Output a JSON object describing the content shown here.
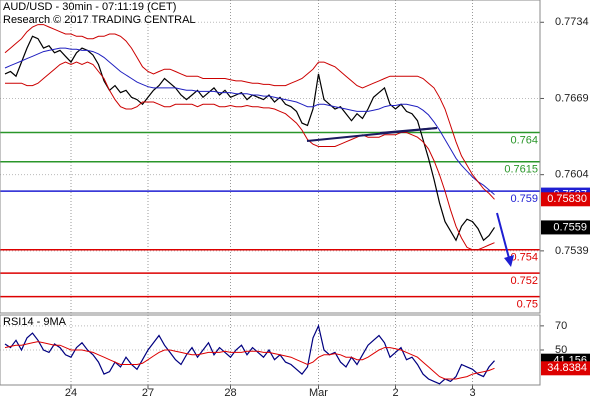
{
  "chart_data": [
    {
      "type": "line",
      "title": "AUD/USD - 30min - 07:11:19 (CET)",
      "subtitle": "Research © 2017 TRADING CENTRAL",
      "xlim": [
        0,
        89
      ],
      "ylim": [
        0.7486,
        0.7753
      ],
      "yticks": [
        0.7734,
        0.7669,
        0.7604,
        0.7539
      ],
      "series": [
        {
          "color": "#000000",
          "values": [
            0.769,
            0.7692,
            0.7688,
            0.77,
            0.7712,
            0.7722,
            0.772,
            0.7712,
            0.7714,
            0.7708,
            0.771,
            0.7705,
            0.77,
            0.7708,
            0.7712,
            0.771,
            0.7706,
            0.7698,
            0.7684,
            0.7676,
            0.768,
            0.7674,
            0.7676,
            0.767,
            0.7668,
            0.7664,
            0.767,
            0.7676,
            0.768,
            0.7686,
            0.7682,
            0.7678,
            0.7672,
            0.7668,
            0.7672,
            0.7676,
            0.767,
            0.7674,
            0.7678,
            0.7672,
            0.7676,
            0.767,
            0.7672,
            0.7674,
            0.7668,
            0.7672,
            0.767,
            0.7668,
            0.7672,
            0.7666,
            0.767,
            0.7664,
            0.7662,
            0.7658,
            0.7648,
            0.7646,
            0.766,
            0.769,
            0.7668,
            0.7664,
            0.766,
            0.7662,
            0.7656,
            0.765,
            0.7656,
            0.7652,
            0.766,
            0.767,
            0.7674,
            0.7678,
            0.7664,
            0.766,
            0.7664,
            0.7658,
            0.7656,
            0.765,
            0.7634,
            0.7618,
            0.76,
            0.758,
            0.7564,
            0.7556,
            0.7548,
            0.756,
            0.7566,
            0.7564,
            0.7558,
            0.7548,
            0.7552,
            0.7559
          ]
        },
        {
          "color": "#2020c0",
          "values": [
            0.7695,
            0.7697,
            0.7699,
            0.7701,
            0.7703,
            0.7705,
            0.7707,
            0.7709,
            0.771,
            0.7711,
            0.7712,
            0.7712,
            0.7711,
            0.7711,
            0.771,
            0.771,
            0.7709,
            0.7707,
            0.7704,
            0.77,
            0.7696,
            0.7692,
            0.7689,
            0.7686,
            0.7683,
            0.7681,
            0.7679,
            0.7678,
            0.7678,
            0.7678,
            0.7678,
            0.7678,
            0.7677,
            0.7676,
            0.7676,
            0.7675,
            0.7675,
            0.7675,
            0.7675,
            0.7674,
            0.7674,
            0.7674,
            0.7673,
            0.7673,
            0.7673,
            0.7672,
            0.7672,
            0.7671,
            0.7671,
            0.767,
            0.7669,
            0.7668,
            0.7667,
            0.7666,
            0.7664,
            0.7662,
            0.7662,
            0.7664,
            0.7664,
            0.7663,
            0.7662,
            0.7661,
            0.766,
            0.7659,
            0.7658,
            0.7658,
            0.7658,
            0.7659,
            0.766,
            0.7662,
            0.7663,
            0.7663,
            0.7664,
            0.7664,
            0.7663,
            0.7662,
            0.7659,
            0.7655,
            0.7649,
            0.7642,
            0.7634,
            0.7626,
            0.7618,
            0.7612,
            0.7607,
            0.7602,
            0.7598,
            0.7595,
            0.7591,
            0.7587
          ]
        },
        {
          "color": "#cc0000",
          "values": [
            0.7708,
            0.7712,
            0.7716,
            0.772,
            0.7726,
            0.773,
            0.7732,
            0.7732,
            0.773,
            0.7728,
            0.7726,
            0.7724,
            0.7724,
            0.7722,
            0.7722,
            0.772,
            0.772,
            0.7722,
            0.7722,
            0.7724,
            0.7724,
            0.7722,
            0.7718,
            0.7712,
            0.7704,
            0.7696,
            0.7692,
            0.769,
            0.7692,
            0.7694,
            0.7694,
            0.7692,
            0.769,
            0.7688,
            0.7688,
            0.7688,
            0.7686,
            0.7686,
            0.7686,
            0.7686,
            0.7686,
            0.7685,
            0.7684,
            0.7684,
            0.7683,
            0.7682,
            0.7682,
            0.7681,
            0.7681,
            0.768,
            0.768,
            0.768,
            0.7682,
            0.7684,
            0.7686,
            0.769,
            0.7694,
            0.77,
            0.77,
            0.7698,
            0.7696,
            0.7692,
            0.7688,
            0.7684,
            0.768,
            0.7678,
            0.768,
            0.7682,
            0.7684,
            0.7686,
            0.7688,
            0.7688,
            0.7688,
            0.7688,
            0.7688,
            0.7688,
            0.7686,
            0.7682,
            0.7678,
            0.767,
            0.766,
            0.7646,
            0.7632,
            0.762,
            0.7612,
            0.7604,
            0.7598,
            0.7592,
            0.7588,
            0.7583
          ]
        },
        {
          "color": "#cc0000",
          "values": [
            0.7682,
            0.7682,
            0.7682,
            0.7682,
            0.768,
            0.768,
            0.7682,
            0.7686,
            0.769,
            0.7694,
            0.7698,
            0.77,
            0.7698,
            0.77,
            0.7698,
            0.77,
            0.7698,
            0.7692,
            0.7686,
            0.7676,
            0.7668,
            0.7662,
            0.766,
            0.766,
            0.7662,
            0.7666,
            0.7666,
            0.7666,
            0.7664,
            0.7662,
            0.7662,
            0.7664,
            0.7664,
            0.7664,
            0.7664,
            0.7662,
            0.7664,
            0.7664,
            0.7664,
            0.7662,
            0.7662,
            0.7663,
            0.7662,
            0.7662,
            0.7663,
            0.7662,
            0.7662,
            0.7661,
            0.7661,
            0.766,
            0.7658,
            0.7656,
            0.7652,
            0.7648,
            0.7642,
            0.7634,
            0.763,
            0.7628,
            0.7628,
            0.7628,
            0.7628,
            0.763,
            0.7632,
            0.7634,
            0.7636,
            0.7638,
            0.7636,
            0.7636,
            0.7636,
            0.7638,
            0.7638,
            0.7638,
            0.764,
            0.764,
            0.7638,
            0.7636,
            0.7632,
            0.7626,
            0.7616,
            0.7604,
            0.759,
            0.7574,
            0.756,
            0.755,
            0.7542,
            0.754,
            0.754,
            0.7542,
            0.7544,
            0.7546
          ]
        }
      ],
      "levels": [
        {
          "value": 0.764,
          "color": "#2a962a"
        },
        {
          "value": 0.7615,
          "color": "#2a962a"
        },
        {
          "value": 0.759,
          "color": "#1e1ed2"
        },
        {
          "value": 0.754,
          "color": "#dd0000"
        },
        {
          "value": 0.752,
          "color": "#dd0000"
        },
        {
          "value": 0.75,
          "color": "#dd0000"
        }
      ],
      "markers": [
        {
          "value": 0.7587,
          "color": "#1e1ed2"
        },
        {
          "value": 0.7583,
          "label": "0.75830",
          "color": "#dd0000"
        },
        {
          "value": 0.7559,
          "color": "#000000"
        }
      ]
    },
    {
      "type": "line",
      "title": "RSI14 - 9MA",
      "xlim": [
        0,
        89
      ],
      "ylim": [
        21,
        79
      ],
      "yticks": [
        70,
        50
      ],
      "xticks": [
        {
          "value": 12,
          "label": "24"
        },
        {
          "value": 26,
          "label": "27"
        },
        {
          "value": 41,
          "label": "28"
        },
        {
          "value": 57,
          "label": "Mar"
        },
        {
          "value": 71,
          "label": "2"
        },
        {
          "value": 85,
          "label": "3"
        }
      ],
      "series": [
        {
          "color": "#000080",
          "values": [
            55,
            52,
            58,
            50,
            60,
            64,
            58,
            50,
            48,
            55,
            52,
            46,
            44,
            52,
            56,
            50,
            46,
            40,
            30,
            32,
            40,
            36,
            44,
            38,
            34,
            42,
            50,
            56,
            62,
            54,
            48,
            42,
            38,
            46,
            52,
            44,
            50,
            56,
            46,
            52,
            48,
            44,
            50,
            54,
            46,
            52,
            48,
            44,
            50,
            42,
            46,
            40,
            38,
            34,
            30,
            36,
            60,
            70,
            50,
            46,
            48,
            40,
            36,
            44,
            38,
            46,
            54,
            58,
            62,
            56,
            44,
            48,
            52,
            42,
            44,
            38,
            30,
            26,
            24,
            22,
            26,
            24,
            28,
            38,
            36,
            34,
            30,
            28,
            36,
            41.156
          ]
        },
        {
          "color": "#dd0000",
          "values": [
            52,
            53,
            54,
            54,
            55,
            56,
            57,
            56,
            55,
            54,
            54,
            52,
            50,
            50,
            50,
            49,
            48,
            46,
            44,
            42,
            40,
            38,
            38,
            38,
            38,
            39,
            42,
            45,
            48,
            50,
            50,
            49,
            48,
            47,
            46,
            46,
            47,
            48,
            48,
            48,
            49,
            48,
            48,
            48,
            49,
            49,
            49,
            48,
            48,
            47,
            46,
            45,
            44,
            42,
            40,
            38,
            40,
            44,
            46,
            46,
            47,
            46,
            44,
            44,
            42,
            42,
            44,
            47,
            50,
            52,
            52,
            51,
            50,
            48,
            46,
            44,
            40,
            36,
            32,
            28,
            26,
            26,
            26,
            27,
            28,
            30,
            31,
            32,
            33,
            34.8384
          ]
        }
      ],
      "markers": [
        {
          "value": 41.156,
          "color": "#000000"
        },
        {
          "value": 34.8384,
          "color": "#dd0000"
        }
      ]
    }
  ]
}
